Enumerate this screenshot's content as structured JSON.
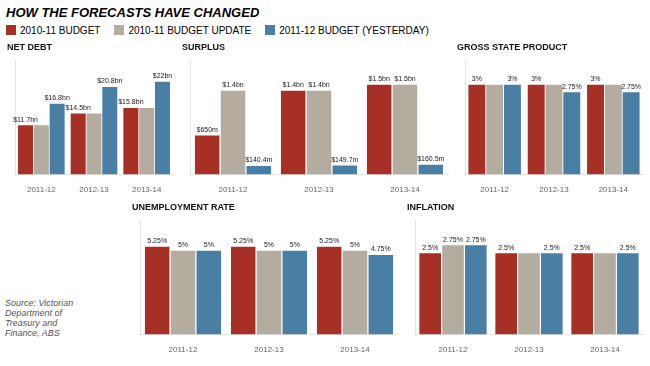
{
  "title": "HOW THE FORECASTS HAVE CHANGED",
  "legend": "upper left",
  "annotations": [
    "Source: Victorian\nDepartment of\nTreasury and\nFinance, ABS"
  ],
  "chart_data": [
    {
      "type": "bar",
      "title": "NET DEBT",
      "categories": [
        "2011-12",
        "2012-13",
        "2013-14"
      ],
      "series": [
        {
          "name": "2010-11 BUDGET",
          "color": "#a63025",
          "values": [
            11.7,
            14.5,
            15.8
          ],
          "value_labels": [
            "$11.7bn",
            "$14.5bn",
            "$15.8bn"
          ]
        },
        {
          "name": "2010-11 BUDGET UPDATE",
          "color": "#b5aca0",
          "values": [
            11.7,
            14.5,
            15.8
          ],
          "value_labels": [
            null,
            null,
            null
          ]
        },
        {
          "name": "2011-12 BUDGET (YESTERDAY)",
          "color": "#4a7fa5",
          "values": [
            16.8,
            20.8,
            22.0
          ],
          "value_labels": [
            "$16.8bn",
            "$20.8bn",
            "$22bn"
          ]
        }
      ],
      "ylim": [
        0,
        27
      ],
      "grid": false,
      "tick_labels": "x",
      "data_labels": true
    },
    {
      "type": "bar",
      "title": "SURPLUS",
      "categories": [
        "2011-12",
        "2012-13",
        "2013-14"
      ],
      "series": [
        {
          "name": "2010-11 BUDGET",
          "color": "#a63025",
          "values": [
            650,
            1400,
            1500
          ],
          "value_labels": [
            "$650m",
            "$1.4bn",
            "$1.5bn"
          ]
        },
        {
          "name": "2010-11 BUDGET UPDATE",
          "color": "#b5aca0",
          "values": [
            1400,
            1400,
            1500
          ],
          "value_labels": [
            "$1.4bn",
            "$1.4bn",
            "$1.5bn"
          ]
        },
        {
          "name": "2011-12 BUDGET (YESTERDAY)",
          "color": "#4a7fa5",
          "values": [
            140.4,
            149.7,
            160.5
          ],
          "value_labels": [
            "$140.4m",
            "$149.7m",
            "$160.5m"
          ]
        }
      ],
      "ylim": [
        0,
        1900
      ],
      "grid": false,
      "tick_labels": "x",
      "data_labels": true
    },
    {
      "type": "bar",
      "title": "GROSS STATE PRODUCT",
      "categories": [
        "2011-12",
        "2012-13",
        "2013-14"
      ],
      "series": [
        {
          "name": "2010-11 BUDGET",
          "color": "#a63025",
          "values": [
            3.0,
            3.0,
            3.0
          ],
          "value_labels": [
            "3%",
            "3%",
            "3%"
          ]
        },
        {
          "name": "2010-11 BUDGET UPDATE",
          "color": "#b5aca0",
          "values": [
            3.0,
            3.0,
            3.0
          ],
          "value_labels": [
            null,
            null,
            null
          ]
        },
        {
          "name": "2011-12 BUDGET (YESTERDAY)",
          "color": "#4a7fa5",
          "values": [
            3.0,
            2.75,
            2.75
          ],
          "value_labels": [
            "3%",
            "2.75%",
            "2.75%"
          ]
        }
      ],
      "ylim": [
        0,
        3.8
      ],
      "grid": false,
      "tick_labels": "x",
      "data_labels": true
    },
    {
      "type": "bar",
      "title": "UNEMPLOYMENT RATE",
      "categories": [
        "2011-12",
        "2012-13",
        "2013-14"
      ],
      "series": [
        {
          "name": "2010-11 BUDGET",
          "color": "#a63025",
          "values": [
            5.25,
            5.25,
            5.25
          ],
          "value_labels": [
            "5.25%",
            "5.25%",
            "5.25%"
          ]
        },
        {
          "name": "2010-11 BUDGET UPDATE",
          "color": "#b5aca0",
          "values": [
            5.0,
            5.0,
            5.0
          ],
          "value_labels": [
            "5%",
            "5%",
            "5%"
          ]
        },
        {
          "name": "2011-12 BUDGET (YESTERDAY)",
          "color": "#4a7fa5",
          "values": [
            5.0,
            5.0,
            4.75
          ],
          "value_labels": [
            "5%",
            "5%",
            "4.75%"
          ]
        }
      ],
      "ylim": [
        0,
        6.8
      ],
      "grid": false,
      "tick_labels": "x",
      "data_labels": true
    },
    {
      "type": "bar",
      "title": "INFLATION",
      "categories": [
        "2011-12",
        "2012-13",
        "2013-14"
      ],
      "series": [
        {
          "name": "2010-11 BUDGET",
          "color": "#a63025",
          "values": [
            2.5,
            2.5,
            2.5
          ],
          "value_labels": [
            "2.5%",
            "2.5%",
            "2.5%"
          ]
        },
        {
          "name": "2010-11 BUDGET UPDATE",
          "color": "#b5aca0",
          "values": [
            2.75,
            2.5,
            2.5
          ],
          "value_labels": [
            "2.75%",
            null,
            null
          ]
        },
        {
          "name": "2011-12 BUDGET (YESTERDAY)",
          "color": "#4a7fa5",
          "values": [
            2.75,
            2.5,
            2.5
          ],
          "value_labels": [
            "2.75%",
            "2.5%",
            "2.5%"
          ]
        }
      ],
      "ylim": [
        0,
        3.5
      ],
      "grid": false,
      "tick_labels": "x",
      "data_labels": true
    }
  ]
}
